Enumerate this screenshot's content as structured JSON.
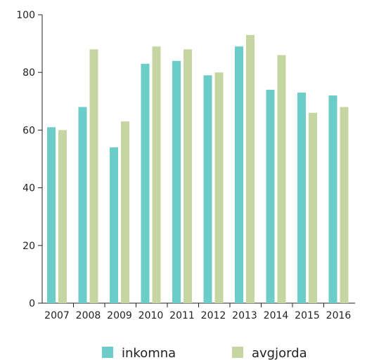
{
  "chart_data": {
    "type": "bar",
    "categories": [
      "2007",
      "2008",
      "2009",
      "2010",
      "2011",
      "2012",
      "2013",
      "2014",
      "2015",
      "2016"
    ],
    "series": [
      {
        "name": "inkomna",
        "color": "#6ccdc8",
        "values": [
          61,
          68,
          54,
          83,
          84,
          79,
          89,
          74,
          73,
          72
        ]
      },
      {
        "name": "avgjorda",
        "color": "#c5d6a2",
        "values": [
          60,
          88,
          63,
          89,
          88,
          80,
          93,
          86,
          66,
          68
        ]
      }
    ],
    "title": "",
    "xlabel": "",
    "ylabel": "",
    "ylim": [
      0,
      100
    ],
    "yticks": [
      0,
      20,
      40,
      60,
      80,
      100
    ],
    "grid": false,
    "legend_position": "bottom"
  }
}
